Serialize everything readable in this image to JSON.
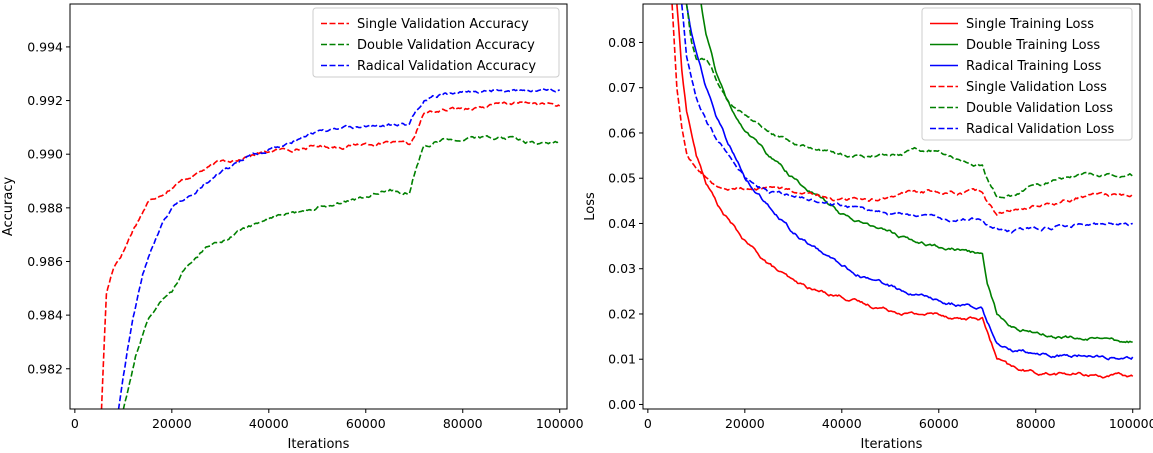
{
  "chart_data": [
    {
      "type": "line",
      "title": "",
      "xlabel": "Iterations",
      "ylabel": "Accuracy",
      "xlim": [
        -1000,
        101500
      ],
      "ylim": [
        0.9805,
        0.9956
      ],
      "xticks": [
        0,
        20000,
        40000,
        60000,
        80000,
        100000
      ],
      "xtick_labels": [
        "0",
        "20000",
        "40000",
        "60000",
        "80000",
        "100000"
      ],
      "yticks": [
        0.982,
        0.984,
        0.986,
        0.988,
        0.99,
        0.992,
        0.994
      ],
      "ytick_labels": [
        "0.982",
        "0.984",
        "0.986",
        "0.988",
        "0.990",
        "0.992",
        "0.994"
      ],
      "grid": false,
      "legend": "top-right",
      "series": [
        {
          "name": "Single Validation Accuracy",
          "color": "#ff0000",
          "dash": "dashed",
          "x": [
            5500,
            6500,
            8000,
            10000,
            12000,
            15000,
            20000,
            25000,
            30000,
            35000,
            40000,
            45000,
            50000,
            55000,
            60000,
            65000,
            69000,
            70000,
            72000,
            75000,
            80000,
            85000,
            90000,
            95000,
            100000
          ],
          "y": [
            0.9805,
            0.9848,
            0.9858,
            0.9864,
            0.9872,
            0.9882,
            0.9888,
            0.9893,
            0.9897,
            0.9899,
            0.9901,
            0.9902,
            0.9903,
            0.9903,
            0.9904,
            0.9904,
            0.9903,
            0.9906,
            0.9915,
            0.9916,
            0.9917,
            0.9918,
            0.9919,
            0.9919,
            0.9918
          ]
        },
        {
          "name": "Double Validation Accuracy",
          "color": "#008000",
          "dash": "dashed",
          "x": [
            10000,
            11000,
            12500,
            15000,
            17500,
            20000,
            22500,
            25000,
            30000,
            35000,
            40000,
            45000,
            50000,
            55000,
            60000,
            65000,
            69000,
            70000,
            72000,
            75000,
            80000,
            85000,
            90000,
            95000,
            100000
          ],
          "y": [
            0.9805,
            0.9812,
            0.9825,
            0.9838,
            0.9845,
            0.9848,
            0.9856,
            0.9862,
            0.9868,
            0.9872,
            0.9876,
            0.9878,
            0.988,
            0.9882,
            0.9884,
            0.9887,
            0.9886,
            0.9893,
            0.9903,
            0.9905,
            0.9906,
            0.9906,
            0.9906,
            0.9904,
            0.9904
          ]
        },
        {
          "name": "Radical Validation Accuracy",
          "color": "#0000ff",
          "dash": "dashed",
          "x": [
            9000,
            10000,
            12000,
            14000,
            16000,
            18000,
            20000,
            25000,
            30000,
            35000,
            40000,
            45000,
            50000,
            55000,
            60000,
            65000,
            69000,
            70000,
            72000,
            75000,
            80000,
            85000,
            90000,
            95000,
            100000
          ],
          "y": [
            0.9805,
            0.9818,
            0.984,
            0.9855,
            0.9866,
            0.9874,
            0.988,
            0.9887,
            0.9893,
            0.9898,
            0.9902,
            0.9905,
            0.9908,
            0.9909,
            0.991,
            0.9911,
            0.9911,
            0.9915,
            0.992,
            0.9922,
            0.9923,
            0.9924,
            0.9924,
            0.9924,
            0.9924
          ]
        }
      ]
    },
    {
      "type": "line",
      "title": "",
      "xlabel": "Iterations",
      "ylabel": "Loss",
      "xlim": [
        -1000,
        101500
      ],
      "ylim": [
        -0.001,
        0.0885
      ],
      "xticks": [
        0,
        20000,
        40000,
        60000,
        80000,
        100000
      ],
      "xtick_labels": [
        "0",
        "20000",
        "40000",
        "60000",
        "80000",
        "100000"
      ],
      "yticks": [
        0.0,
        0.01,
        0.02,
        0.03,
        0.04,
        0.05,
        0.06,
        0.07,
        0.08
      ],
      "ytick_labels": [
        "0.00",
        "0.01",
        "0.02",
        "0.03",
        "0.04",
        "0.05",
        "0.06",
        "0.07",
        "0.08"
      ],
      "grid": false,
      "legend": "top-right",
      "series": [
        {
          "name": "Single Training Loss",
          "color": "#ff0000",
          "dash": "solid",
          "x": [
            6000,
            7000,
            8000,
            10000,
            12000,
            15000,
            20000,
            25000,
            30000,
            35000,
            40000,
            45000,
            50000,
            55000,
            60000,
            65000,
            69000,
            70000,
            72000,
            75000,
            80000,
            85000,
            90000,
            95000,
            100000
          ],
          "y": [
            0.0885,
            0.074,
            0.065,
            0.055,
            0.049,
            0.043,
            0.036,
            0.031,
            0.027,
            0.025,
            0.024,
            0.022,
            0.021,
            0.02,
            0.02,
            0.019,
            0.019,
            0.016,
            0.01,
            0.008,
            0.007,
            0.0068,
            0.0066,
            0.0064,
            0.0062
          ]
        },
        {
          "name": "Double Training Loss",
          "color": "#008000",
          "dash": "solid",
          "x": [
            11000,
            12000,
            14000,
            16000,
            18000,
            20000,
            25000,
            30000,
            35000,
            40000,
            45000,
            50000,
            55000,
            60000,
            65000,
            69000,
            70000,
            72000,
            75000,
            80000,
            85000,
            90000,
            95000,
            100000
          ],
          "y": [
            0.0885,
            0.082,
            0.074,
            0.068,
            0.064,
            0.061,
            0.055,
            0.05,
            0.046,
            0.042,
            0.04,
            0.038,
            0.036,
            0.035,
            0.034,
            0.033,
            0.027,
            0.02,
            0.017,
            0.016,
            0.015,
            0.0145,
            0.014,
            0.0138
          ]
        },
        {
          "name": "Radical Training Loss",
          "color": "#0000ff",
          "dash": "solid",
          "x": [
            8000,
            9000,
            10000,
            12000,
            14000,
            16000,
            18000,
            20000,
            25000,
            30000,
            35000,
            40000,
            45000,
            50000,
            55000,
            60000,
            65000,
            69000,
            70000,
            72000,
            75000,
            80000,
            85000,
            90000,
            95000,
            100000
          ],
          "y": [
            0.0885,
            0.082,
            0.078,
            0.07,
            0.064,
            0.059,
            0.055,
            0.05,
            0.044,
            0.038,
            0.034,
            0.031,
            0.028,
            0.026,
            0.024,
            0.023,
            0.022,
            0.021,
            0.018,
            0.014,
            0.012,
            0.0115,
            0.011,
            0.0108,
            0.0106,
            0.0105
          ]
        },
        {
          "name": "Single Validation Loss",
          "color": "#ff0000",
          "dash": "dashed",
          "x": [
            5000,
            6000,
            7000,
            8000,
            10000,
            12000,
            15000,
            20000,
            25000,
            30000,
            35000,
            40000,
            45000,
            50000,
            55000,
            60000,
            65000,
            69000,
            70000,
            72000,
            75000,
            80000,
            85000,
            90000,
            95000,
            100000
          ],
          "y": [
            0.0885,
            0.07,
            0.062,
            0.056,
            0.052,
            0.05,
            0.048,
            0.048,
            0.048,
            0.047,
            0.046,
            0.045,
            0.045,
            0.046,
            0.047,
            0.047,
            0.047,
            0.047,
            0.045,
            0.042,
            0.043,
            0.044,
            0.045,
            0.046,
            0.046,
            0.0465
          ]
        },
        {
          "name": "Double Validation Loss",
          "color": "#008000",
          "dash": "dashed",
          "x": [
            8000,
            9000,
            10000,
            12000,
            14000,
            16000,
            18000,
            20000,
            25000,
            30000,
            35000,
            40000,
            45000,
            50000,
            55000,
            60000,
            65000,
            69000,
            70000,
            72000,
            75000,
            80000,
            85000,
            90000,
            95000,
            100000
          ],
          "y": [
            0.0885,
            0.08,
            0.076,
            0.076,
            0.072,
            0.068,
            0.066,
            0.064,
            0.06,
            0.058,
            0.056,
            0.055,
            0.055,
            0.055,
            0.056,
            0.056,
            0.054,
            0.053,
            0.05,
            0.046,
            0.046,
            0.048,
            0.05,
            0.051,
            0.0505,
            0.0505
          ]
        },
        {
          "name": "Radical Validation Loss",
          "color": "#0000ff",
          "dash": "dashed",
          "x": [
            7000,
            8000,
            10000,
            12000,
            14000,
            16000,
            18000,
            20000,
            25000,
            30000,
            35000,
            40000,
            45000,
            50000,
            55000,
            60000,
            65000,
            69000,
            70000,
            72000,
            75000,
            80000,
            85000,
            90000,
            95000,
            100000
          ],
          "y": [
            0.0885,
            0.077,
            0.068,
            0.063,
            0.059,
            0.056,
            0.053,
            0.05,
            0.047,
            0.046,
            0.045,
            0.044,
            0.043,
            0.042,
            0.042,
            0.041,
            0.041,
            0.041,
            0.04,
            0.039,
            0.0385,
            0.039,
            0.0395,
            0.04,
            0.04,
            0.04
          ]
        }
      ]
    }
  ]
}
